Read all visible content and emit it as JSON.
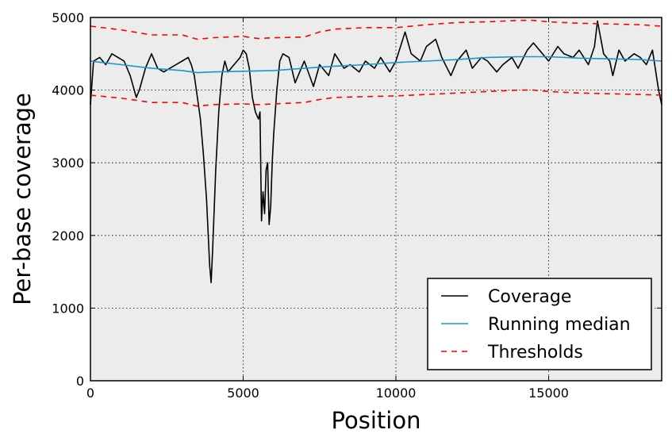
{
  "chart_data": {
    "type": "line",
    "xlabel": "Position",
    "ylabel": "Per-base coverage",
    "xlim": [
      0,
      18700
    ],
    "ylim": [
      0,
      5000
    ],
    "grid": true,
    "legend_position": "lower-right",
    "x_ticks": [
      0,
      5000,
      10000,
      15000
    ],
    "y_ticks": [
      0,
      1000,
      2000,
      3000,
      4000,
      5000
    ],
    "series": [
      {
        "name": "Coverage",
        "color": "#000000",
        "style": "solid",
        "x": [
          0,
          100,
          300,
          500,
          700,
          900,
          1100,
          1300,
          1500,
          1600,
          1800,
          2000,
          2200,
          2400,
          2600,
          2800,
          3000,
          3200,
          3300,
          3400,
          3500,
          3600,
          3700,
          3800,
          3900,
          3950,
          4000,
          4100,
          4200,
          4300,
          4400,
          4500,
          4600,
          4800,
          4900,
          5000,
          5100,
          5200,
          5300,
          5400,
          5500,
          5550,
          5600,
          5650,
          5700,
          5750,
          5800,
          5850,
          5900,
          5950,
          6000,
          6100,
          6200,
          6300,
          6500,
          6700,
          7000,
          7300,
          7500,
          7800,
          8000,
          8300,
          8500,
          8800,
          9000,
          9300,
          9500,
          9800,
          10000,
          10300,
          10500,
          10800,
          11000,
          11300,
          11500,
          11800,
          12000,
          12300,
          12500,
          12800,
          13000,
          13300,
          13500,
          13800,
          14000,
          14300,
          14500,
          14800,
          15000,
          15300,
          15500,
          15800,
          16000,
          16300,
          16500,
          16600,
          16800,
          17000,
          17100,
          17300,
          17500,
          17800,
          18000,
          18200,
          18400,
          18600,
          18700
        ],
        "values": [
          3800,
          4400,
          4450,
          4350,
          4500,
          4450,
          4400,
          4200,
          3900,
          4000,
          4300,
          4500,
          4300,
          4250,
          4300,
          4350,
          4400,
          4450,
          4350,
          4200,
          3900,
          3600,
          3100,
          2500,
          1600,
          1350,
          1800,
          2900,
          3700,
          4200,
          4400,
          4250,
          4300,
          4400,
          4450,
          4550,
          4500,
          4300,
          3900,
          3700,
          3600,
          3700,
          2200,
          2600,
          2300,
          2900,
          3000,
          2150,
          2400,
          3000,
          3400,
          4000,
          4400,
          4500,
          4450,
          4100,
          4400,
          4050,
          4350,
          4200,
          4500,
          4300,
          4350,
          4250,
          4400,
          4300,
          4450,
          4250,
          4400,
          4800,
          4500,
          4400,
          4600,
          4700,
          4450,
          4200,
          4400,
          4550,
          4300,
          4450,
          4400,
          4250,
          4350,
          4450,
          4300,
          4550,
          4650,
          4500,
          4400,
          4600,
          4500,
          4450,
          4550,
          4350,
          4600,
          4950,
          4500,
          4400,
          4200,
          4550,
          4400,
          4500,
          4450,
          4350,
          4550,
          4000,
          3800
        ]
      },
      {
        "name": "Running median",
        "color": "#1a96c8",
        "style": "solid",
        "x": [
          0,
          1000,
          2000,
          3000,
          3500,
          4000,
          5000,
          6000,
          7000,
          8000,
          9000,
          10000,
          11000,
          12000,
          13000,
          14000,
          15000,
          16000,
          17000,
          18000,
          18700
        ],
        "values": [
          4400,
          4350,
          4300,
          4270,
          4240,
          4250,
          4260,
          4270,
          4300,
          4330,
          4350,
          4380,
          4400,
          4420,
          4450,
          4460,
          4460,
          4440,
          4430,
          4420,
          4400
        ]
      },
      {
        "name": "Thresholds",
        "color": "#ff0000",
        "style": "dashed",
        "x": [
          0,
          1000,
          2000,
          3000,
          3500,
          4000,
          5000,
          5500,
          6000,
          7000,
          7500,
          8000,
          9000,
          10000,
          11000,
          12000,
          13000,
          14000,
          14500,
          15000,
          16000,
          17000,
          18000,
          18700
        ],
        "values": [
          4880,
          4830,
          4760,
          4760,
          4700,
          4720,
          4740,
          4710,
          4720,
          4730,
          4800,
          4840,
          4860,
          4860,
          4900,
          4930,
          4940,
          4960,
          4960,
          4940,
          4920,
          4910,
          4900,
          4880
        ]
      },
      {
        "name": "",
        "color": "#ff0000",
        "style": "dashed",
        "x": [
          0,
          1000,
          2000,
          3000,
          3500,
          4000,
          5000,
          5500,
          6000,
          7000,
          7500,
          8000,
          9000,
          10000,
          11000,
          12000,
          13000,
          14000,
          14500,
          15000,
          16000,
          17000,
          18000,
          18700
        ],
        "values": [
          3930,
          3890,
          3830,
          3830,
          3780,
          3800,
          3810,
          3800,
          3810,
          3830,
          3870,
          3900,
          3910,
          3920,
          3940,
          3960,
          3980,
          4000,
          4000,
          3980,
          3960,
          3950,
          3940,
          3930
        ]
      }
    ],
    "legend": [
      "Coverage",
      "Running median",
      "Thresholds"
    ]
  }
}
